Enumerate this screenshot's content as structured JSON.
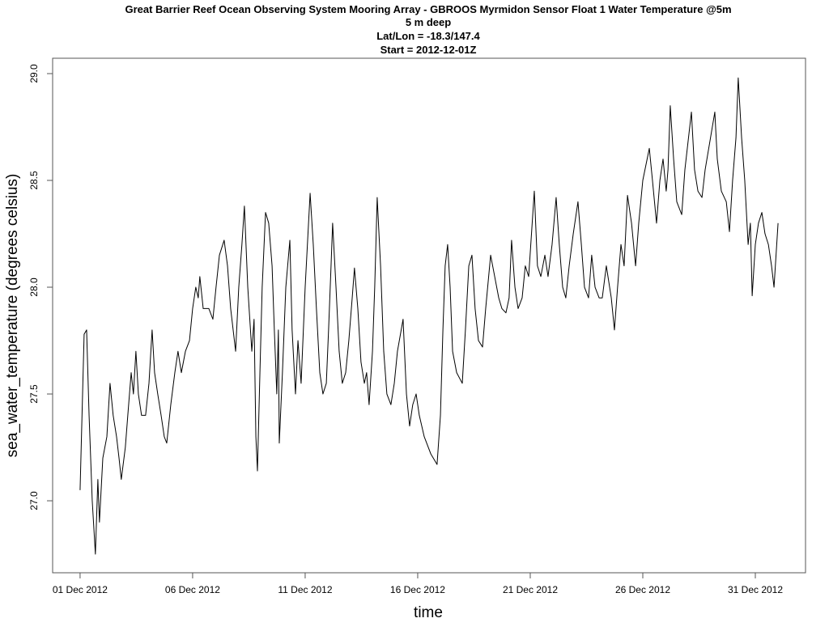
{
  "chart_data": {
    "type": "line",
    "title": [
      "Great Barrier Reef Ocean Observing System Mooring Array - GBROOS Myrmidon Sensor Float 1 Water Temperature @5m",
      "5 m deep",
      "Lat/Lon = -18.3/147.4",
      "Start = 2012-12-01Z"
    ],
    "x_label": "time",
    "y_label": "sea_water_temperature (degrees celsius)",
    "color": "#000000",
    "xlim": [
      -0.22,
      33.23
    ],
    "ylim": [
      26.663,
      29.072
    ],
    "xticks": [
      {
        "value": 1,
        "label": "01 Dec 2012"
      },
      {
        "value": 6,
        "label": "06 Dec 2012"
      },
      {
        "value": 11,
        "label": "11 Dec 2012"
      },
      {
        "value": 16,
        "label": "16 Dec 2012"
      },
      {
        "value": 21,
        "label": "21 Dec 2012"
      },
      {
        "value": 26,
        "label": "26 Dec 2012"
      },
      {
        "value": 31,
        "label": "31 Dec 2012"
      }
    ],
    "yticks": [
      {
        "value": 27,
        "label": "27.0"
      },
      {
        "value": 27.5,
        "label": "27.5"
      },
      {
        "value": 28,
        "label": "28.0"
      },
      {
        "value": 28.5,
        "label": "28.5"
      },
      {
        "value": 29,
        "label": "29.0"
      }
    ],
    "x": [
      1.0,
      1.18,
      1.29,
      1.4,
      1.54,
      1.68,
      1.79,
      1.86,
      2.01,
      2.19,
      2.33,
      2.47,
      2.62,
      2.73,
      2.83,
      3.01,
      3.12,
      3.27,
      3.37,
      3.48,
      3.59,
      3.73,
      3.91,
      4.06,
      4.2,
      4.31,
      4.45,
      4.6,
      4.74,
      4.85,
      5.03,
      5.21,
      5.35,
      5.5,
      5.68,
      5.86,
      6.0,
      6.14,
      6.25,
      6.32,
      6.47,
      6.72,
      6.9,
      7.04,
      7.19,
      7.4,
      7.55,
      7.69,
      7.91,
      8.05,
      8.19,
      8.3,
      8.45,
      8.63,
      8.73,
      8.81,
      8.88,
      8.99,
      9.09,
      9.24,
      9.38,
      9.53,
      9.63,
      9.74,
      9.81,
      9.85,
      9.99,
      10.14,
      10.32,
      10.42,
      10.57,
      10.68,
      10.82,
      11.0,
      11.22,
      11.36,
      11.5,
      11.65,
      11.79,
      11.94,
      12.04,
      12.15,
      12.22,
      12.37,
      12.51,
      12.65,
      12.8,
      12.94,
      13.09,
      13.19,
      13.34,
      13.48,
      13.63,
      13.73,
      13.84,
      13.99,
      14.09,
      14.2,
      14.35,
      14.49,
      14.63,
      14.81,
      14.96,
      15.1,
      15.35,
      15.5,
      15.64,
      15.78,
      15.93,
      16.07,
      16.29,
      16.58,
      16.86,
      17.01,
      17.12,
      17.22,
      17.33,
      17.44,
      17.55,
      17.73,
      17.98,
      18.12,
      18.27,
      18.41,
      18.55,
      18.7,
      18.88,
      19.02,
      19.24,
      19.42,
      19.6,
      19.74,
      19.92,
      20.06,
      20.17,
      20.32,
      20.46,
      20.64,
      20.78,
      20.93,
      21.18,
      21.32,
      21.47,
      21.65,
      21.79,
      21.97,
      22.15,
      22.29,
      22.44,
      22.58,
      22.73,
      22.91,
      23.12,
      23.27,
      23.41,
      23.59,
      23.73,
      23.88,
      24.06,
      24.2,
      24.38,
      24.6,
      24.74,
      24.88,
      25.03,
      25.17,
      25.32,
      25.5,
      25.68,
      25.82,
      26.0,
      26.29,
      26.43,
      26.61,
      26.76,
      26.9,
      27.04,
      27.12,
      27.22,
      27.37,
      27.51,
      27.73,
      27.87,
      28.16,
      28.3,
      28.45,
      28.63,
      28.77,
      29.2,
      29.31,
      29.49,
      29.71,
      29.85,
      29.99,
      30.14,
      30.24,
      30.39,
      30.53,
      30.68,
      30.78,
      30.86,
      31.0,
      31.14,
      31.29,
      31.43,
      31.58,
      31.72,
      31.83,
      32.01
    ],
    "values": [
      27.05,
      27.78,
      27.8,
      27.4,
      27.0,
      26.75,
      27.1,
      26.9,
      27.2,
      27.3,
      27.55,
      27.4,
      27.3,
      27.2,
      27.1,
      27.25,
      27.4,
      27.6,
      27.5,
      27.7,
      27.5,
      27.4,
      27.4,
      27.55,
      27.8,
      27.6,
      27.5,
      27.4,
      27.3,
      27.27,
      27.45,
      27.6,
      27.7,
      27.6,
      27.7,
      27.75,
      27.9,
      28.0,
      27.95,
      28.05,
      27.9,
      27.9,
      27.85,
      28.0,
      28.15,
      28.22,
      28.1,
      27.9,
      27.7,
      28.0,
      28.2,
      28.38,
      28.0,
      27.7,
      27.85,
      27.3,
      27.14,
      27.6,
      28.0,
      28.35,
      28.3,
      28.1,
      27.8,
      27.5,
      27.8,
      27.27,
      27.6,
      28.0,
      28.22,
      27.8,
      27.5,
      27.75,
      27.55,
      28.0,
      28.44,
      28.2,
      27.9,
      27.6,
      27.5,
      27.55,
      27.8,
      28.1,
      28.3,
      28.0,
      27.7,
      27.55,
      27.6,
      27.75,
      27.95,
      28.09,
      27.9,
      27.65,
      27.55,
      27.6,
      27.45,
      27.7,
      28.0,
      28.42,
      28.1,
      27.7,
      27.5,
      27.45,
      27.55,
      27.7,
      27.85,
      27.5,
      27.35,
      27.45,
      27.5,
      27.4,
      27.3,
      27.22,
      27.17,
      27.4,
      27.8,
      28.1,
      28.2,
      28.0,
      27.7,
      27.6,
      27.55,
      27.8,
      28.1,
      28.15,
      27.9,
      27.75,
      27.72,
      27.9,
      28.15,
      28.05,
      27.95,
      27.9,
      27.88,
      27.95,
      28.22,
      28.0,
      27.9,
      27.95,
      28.1,
      28.05,
      28.45,
      28.1,
      28.05,
      28.15,
      28.05,
      28.2,
      28.42,
      28.2,
      28.0,
      27.95,
      28.1,
      28.25,
      28.4,
      28.2,
      28.0,
      27.95,
      28.15,
      28.0,
      27.95,
      27.95,
      28.1,
      27.95,
      27.8,
      28.0,
      28.2,
      28.1,
      28.43,
      28.3,
      28.1,
      28.3,
      28.5,
      28.65,
      28.5,
      28.3,
      28.5,
      28.6,
      28.45,
      28.55,
      28.85,
      28.6,
      28.4,
      28.34,
      28.55,
      28.82,
      28.55,
      28.45,
      28.42,
      28.55,
      28.82,
      28.6,
      28.45,
      28.4,
      28.26,
      28.5,
      28.7,
      28.98,
      28.7,
      28.5,
      28.2,
      28.3,
      27.96,
      28.2,
      28.3,
      28.35,
      28.25,
      28.2,
      28.1,
      28.0,
      28.3
    ]
  }
}
